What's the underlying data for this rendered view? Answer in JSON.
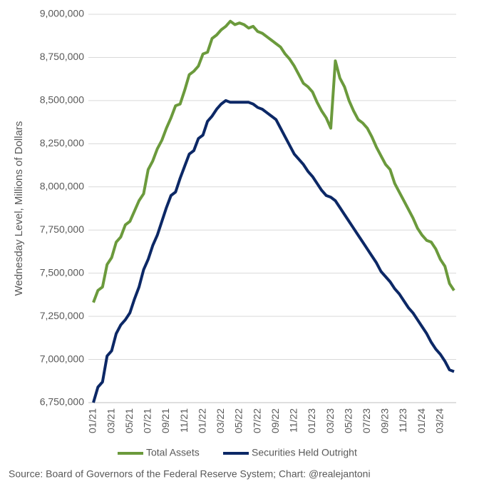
{
  "chart_data": {
    "type": "line",
    "y_label": "Wednesday Level, Millions of Dollars",
    "source": "Source: Board of Governors of the Federal Reserve System; Chart: @realejantoni",
    "categories": [
      "01/21",
      null,
      null,
      null,
      "03/21",
      null,
      null,
      null,
      "05/21",
      null,
      null,
      null,
      "07/21",
      null,
      null,
      null,
      "09/21",
      null,
      null,
      null,
      "11/21",
      null,
      null,
      null,
      "01/22",
      null,
      null,
      null,
      "03/22",
      null,
      null,
      null,
      "05/22",
      null,
      null,
      null,
      "07/22",
      null,
      null,
      null,
      "09/22",
      null,
      null,
      null,
      "11/22",
      null,
      null,
      null,
      "01/23",
      null,
      null,
      null,
      "03/23",
      null,
      null,
      null,
      "05/23",
      null,
      null,
      null,
      "07/23",
      null,
      null,
      null,
      "09/23",
      null,
      null,
      null,
      "11/23",
      null,
      null,
      null,
      "01/24",
      null,
      null,
      null,
      "03/24",
      null,
      null,
      null
    ],
    "series": [
      {
        "name": "Total Assets",
        "color": "#6b9a3c",
        "values": [
          7330000,
          7400000,
          7420000,
          7550000,
          7590000,
          7680000,
          7710000,
          7780000,
          7800000,
          7860000,
          7920000,
          7960000,
          8100000,
          8150000,
          8220000,
          8270000,
          8340000,
          8400000,
          8470000,
          8480000,
          8560000,
          8650000,
          8670000,
          8700000,
          8770000,
          8780000,
          8860000,
          8880000,
          8910000,
          8930000,
          8960000,
          8940000,
          8950000,
          8940000,
          8920000,
          8930000,
          8900000,
          8890000,
          8870000,
          8850000,
          8830000,
          8810000,
          8770000,
          8740000,
          8700000,
          8650000,
          8600000,
          8580000,
          8550000,
          8490000,
          8440000,
          8400000,
          8340000,
          8730000,
          8630000,
          8580000,
          8500000,
          8440000,
          8390000,
          8370000,
          8340000,
          8290000,
          8230000,
          8180000,
          8130000,
          8100000,
          8020000,
          7970000,
          7920000,
          7870000,
          7820000,
          7760000,
          7720000,
          7690000,
          7680000,
          7640000,
          7580000,
          7540000,
          7440000,
          7400000
        ]
      },
      {
        "name": "Securities Held Outright",
        "color": "#0c2866",
        "values": [
          6750000,
          6840000,
          6870000,
          7020000,
          7050000,
          7150000,
          7200000,
          7230000,
          7270000,
          7350000,
          7420000,
          7520000,
          7580000,
          7660000,
          7720000,
          7800000,
          7880000,
          7950000,
          7970000,
          8050000,
          8120000,
          8190000,
          8210000,
          8280000,
          8300000,
          8380000,
          8410000,
          8450000,
          8480000,
          8500000,
          8490000,
          8490000,
          8490000,
          8490000,
          8490000,
          8480000,
          8460000,
          8450000,
          8430000,
          8410000,
          8390000,
          8340000,
          8290000,
          8240000,
          8190000,
          8160000,
          8130000,
          8090000,
          8060000,
          8020000,
          7980000,
          7950000,
          7940000,
          7920000,
          7880000,
          7840000,
          7800000,
          7760000,
          7720000,
          7680000,
          7640000,
          7600000,
          7560000,
          7510000,
          7480000,
          7450000,
          7410000,
          7380000,
          7340000,
          7300000,
          7270000,
          7230000,
          7190000,
          7150000,
          7100000,
          7060000,
          7030000,
          6990000,
          6940000,
          6930000
        ]
      }
    ],
    "ylim": [
      6750000,
      9000000
    ],
    "yticks": [
      {
        "value": 6750000,
        "label": "6,750,000"
      },
      {
        "value": 7000000,
        "label": "7,000,000"
      },
      {
        "value": 7250000,
        "label": "7,250,000"
      },
      {
        "value": 7500000,
        "label": "7,500,000"
      },
      {
        "value": 7750000,
        "label": "7,750,000"
      },
      {
        "value": 8000000,
        "label": "8,000,000"
      },
      {
        "value": 8250000,
        "label": "8,250,000"
      },
      {
        "value": 8500000,
        "label": "8,500,000"
      },
      {
        "value": 8750000,
        "label": "8,750,000"
      },
      {
        "value": 9000000,
        "label": "9,000,000"
      }
    ],
    "grid": true,
    "legend": "bottom"
  }
}
